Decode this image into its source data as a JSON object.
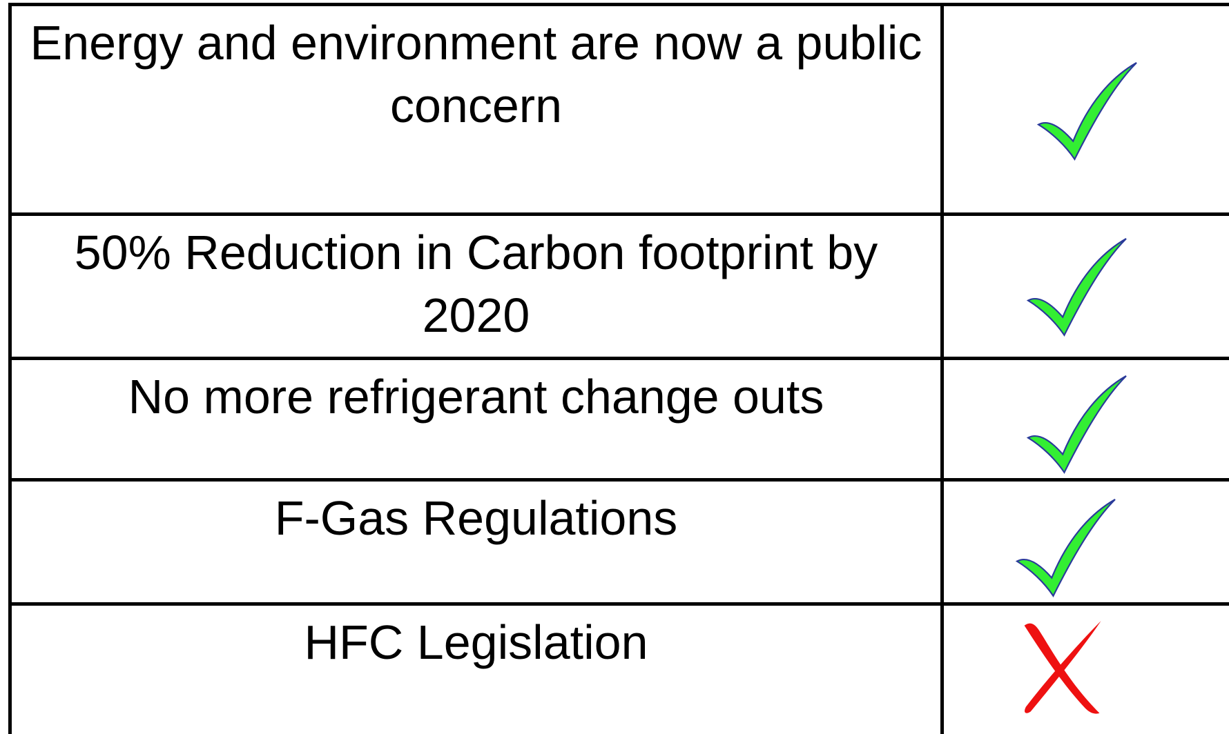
{
  "table": {
    "rows": [
      "Energy and environment are now a public concern",
      "50% Reduction in Carbon footprint by 2020",
      "No more refrigerant change outs",
      "F-Gas Regulations",
      "HFC Legislation"
    ]
  }
}
